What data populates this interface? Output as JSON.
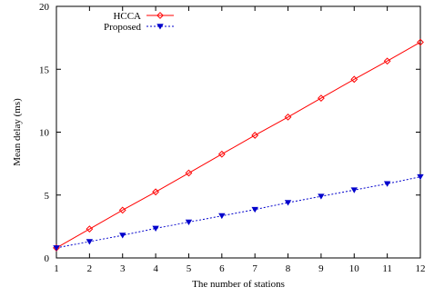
{
  "chart_data": {
    "type": "line",
    "xlabel": "The number of stations",
    "ylabel": "Mean delay (ms)",
    "xlim": [
      1,
      12
    ],
    "ylim": [
      0,
      20
    ],
    "x": [
      1,
      2,
      3,
      4,
      5,
      6,
      7,
      8,
      9,
      10,
      11,
      12
    ],
    "x_ticks": [
      "1",
      "2",
      "3",
      "4",
      "5",
      "6",
      "7",
      "8",
      "9",
      "10",
      "11",
      "12"
    ],
    "y_ticks": [
      "0",
      "5",
      "10",
      "15",
      "20"
    ],
    "legend_position": "top-left",
    "grid": false,
    "series": [
      {
        "name": "HCCA",
        "color": "#ff0000",
        "marker": "diamond",
        "line_style": "solid",
        "values": [
          0.8,
          2.3,
          3.8,
          5.25,
          6.75,
          8.25,
          9.75,
          11.2,
          12.7,
          14.2,
          15.65,
          17.15
        ]
      },
      {
        "name": "Proposed",
        "color": "#0000cc",
        "marker": "triangle-down",
        "line_style": "dashed",
        "values": [
          0.8,
          1.3,
          1.8,
          2.35,
          2.85,
          3.35,
          3.85,
          4.4,
          4.9,
          5.4,
          5.9,
          6.45
        ]
      }
    ]
  }
}
